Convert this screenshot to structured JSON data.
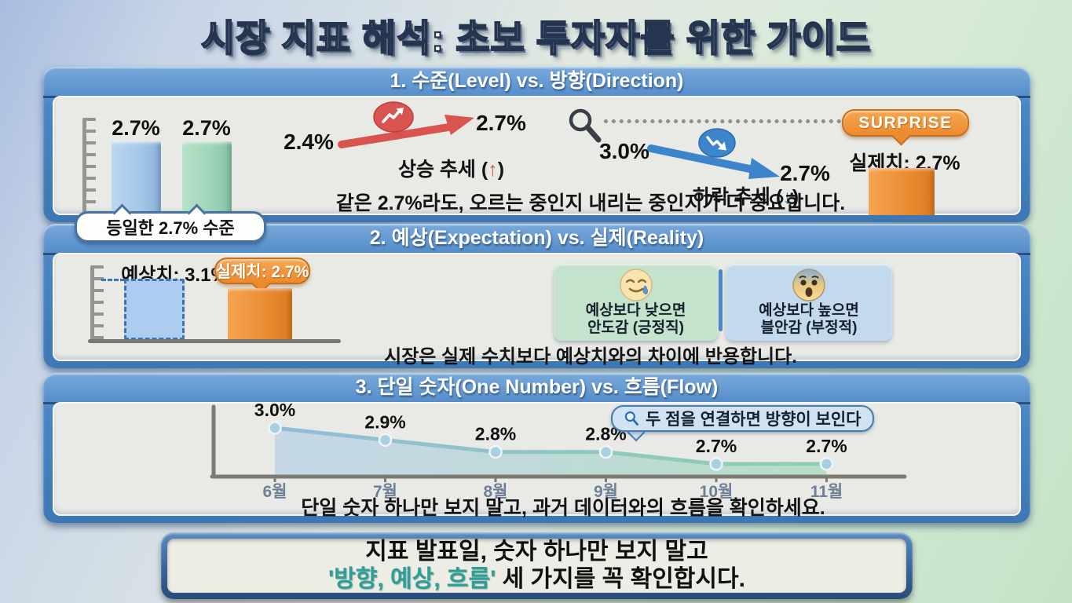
{
  "title": "시장 지표 해석: 초보 투자자를 위한 가이드",
  "section1": {
    "header": "1. 수준(Level) vs. 방향(Direction)",
    "bars": [
      {
        "value": "2.7%"
      },
      {
        "value": "2.7%"
      }
    ],
    "callout": "등일한 2.7% 수준",
    "up_trend": {
      "from": "2.4%",
      "to": "2.7%",
      "label_prefix": "상승 추세 (",
      "label_arrow": "↑",
      "label_suffix": ")"
    },
    "down_trend": {
      "from": "3.0%",
      "to": "2.7%",
      "label_prefix": "하락 추세 (",
      "label_arrow": "↓",
      "label_suffix": ")"
    },
    "surprise_badge": "SURPRISE",
    "actual_value_label": "실제치: 2.7%",
    "caption": "같은 2.7%라도, 오르는 중인지 내리는 중인지가 더 중요합니다."
  },
  "section2": {
    "header": "2. 예상(Expectation) vs. 실제(Reality)",
    "expected_label": "예상치: 3.1%",
    "actual_bubble": "실제치: 2.7%",
    "reaction_cards": [
      {
        "icon": "relieved-face-with-sweat",
        "line1": "예상보다 낮으면",
        "line2": "안도감 (긍정직)"
      },
      {
        "icon": "anxious-face",
        "line1": "예상보다 높으면",
        "line2": "블안감 (부정적)"
      }
    ],
    "caption": "시장은 실제 수치보다 예상치와의 차이에 반용합니다."
  },
  "section3": {
    "header": "3. 단일 숫자(One Number) vs. 흐름(Flow)",
    "callout": "두 점을 연결하면 방향이 보인다",
    "caption": "단일 숫자 하나만 보지 말고, 과거 데이터와의 흐름을 확인하세요."
  },
  "chart_data": {
    "type": "line",
    "title": "3. 단일 숫자(One Number) vs. 흐름(Flow)",
    "x": [
      "6월",
      "7월",
      "8월",
      "9월",
      "10월",
      "11월"
    ],
    "values": [
      3.0,
      2.9,
      2.8,
      2.8,
      2.7,
      2.7
    ],
    "point_labels": [
      "3.0%",
      "2.9%",
      "2.8%",
      "2.8%",
      "2.7%",
      "2.7%"
    ],
    "ylim": [
      2.6,
      3.1
    ],
    "area_fill": true,
    "grid": false,
    "annotation": "두 점을 연결하면 방향이 보인다"
  },
  "footer": {
    "line1": "지표 발표일, 숫자 하나만 보지 말고",
    "highlight": "'방향, 예상, 흐름'",
    "rest": " 세 가지를 꼭 확인합시다."
  },
  "colors": {
    "panel_blue": "#4a86c6",
    "bar_blue": "#a6c8ea",
    "bar_green": "#a0d6ba",
    "bar_orange": "#ec8e34",
    "arrow_red": "#d9534f",
    "arrow_blue": "#3d85ca",
    "surprise_orange": "#ec8a2e",
    "highlight_teal": "#2f9e96",
    "body_bg": "#e9eae5"
  }
}
